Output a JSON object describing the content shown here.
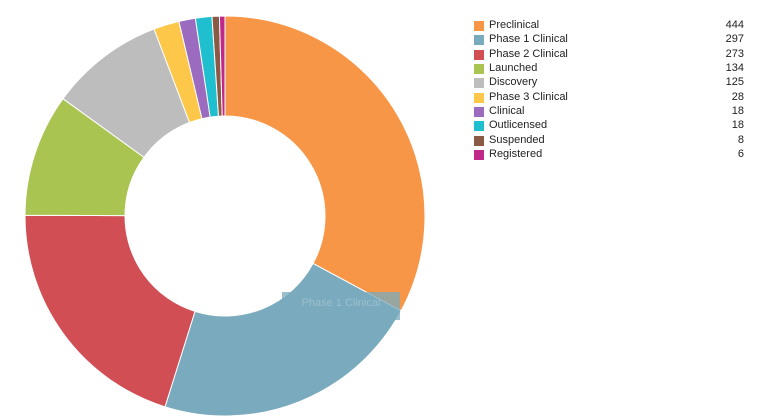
{
  "chart_data": {
    "type": "pie",
    "variant": "donut",
    "legend_position": "right",
    "categories": [
      "Preclinical",
      "Phase 1 Clinical",
      "Phase 2 Clinical",
      "Launched",
      "Discovery",
      "Phase 3 Clinical",
      "Clinical",
      "Outlicensed",
      "Suspended",
      "Registered"
    ],
    "values": [
      444,
      297,
      273,
      134,
      125,
      28,
      18,
      18,
      8,
      6
    ],
    "colors": [
      "#f79646",
      "#7aaabd",
      "#d04e54",
      "#a9c451",
      "#bdbdbd",
      "#fdc84a",
      "#9b6bbf",
      "#1fbfd0",
      "#8a5a44",
      "#c0288a"
    ],
    "hover_label": "Phase 1 Clinical"
  }
}
